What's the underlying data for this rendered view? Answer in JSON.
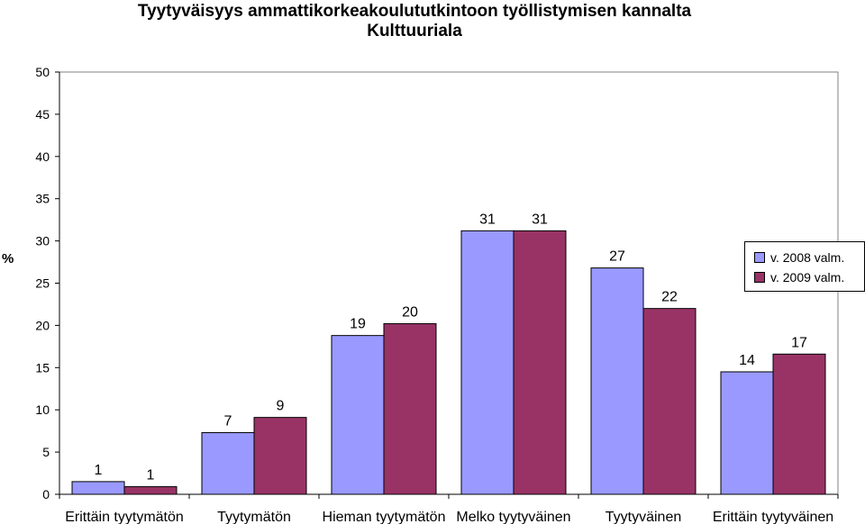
{
  "chart_data": {
    "type": "bar",
    "title": "Tyytyväisyys ammattikorkeakoulututkintoon työllistymisen kannalta",
    "subtitle": "Kulttuuriala",
    "ylabel": "%",
    "xlabel": "",
    "ylim": [
      0,
      50
    ],
    "yticks": [
      "0",
      "5",
      "10",
      "15",
      "20",
      "25",
      "30",
      "35",
      "40",
      "45",
      "50"
    ],
    "categories": [
      "Erittäin tyytymätön",
      "Tyytymätön",
      "Hieman tyytymätön",
      "Melko tyytyväinen",
      "Tyytyväinen",
      "Erittäin tyytyväinen"
    ],
    "series": [
      {
        "name": "v. 2008 valm.",
        "color": "#9999ff",
        "values": [
          1.5,
          7.3,
          18.8,
          31.2,
          26.8,
          14.5
        ],
        "labels": [
          "1",
          "7",
          "19",
          "31",
          "27",
          "14"
        ]
      },
      {
        "name": "v. 2009 valm.",
        "color": "#993366",
        "values": [
          0.9,
          9.1,
          20.2,
          31.2,
          22.0,
          16.6
        ],
        "labels": [
          "1",
          "9",
          "20",
          "31",
          "22",
          "17"
        ]
      }
    ],
    "grid": false,
    "legend_position": "right"
  }
}
